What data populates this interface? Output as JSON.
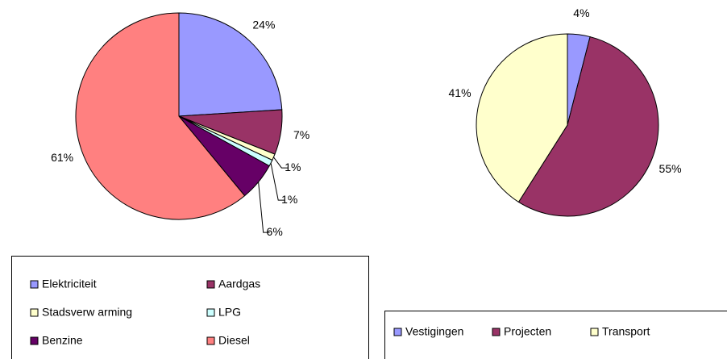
{
  "chart_data": [
    {
      "type": "pie",
      "legend": "bottom",
      "categories": [
        "Elektriciteit",
        "Aardgas",
        "Stadsverw arming",
        "LPG",
        "Benzine",
        "Diesel"
      ],
      "values": [
        24,
        7,
        1,
        1,
        6,
        61
      ],
      "value_labels": [
        "24%",
        "7%",
        "1%",
        "1%",
        "6%",
        "61%"
      ],
      "colors": [
        "#9999ff",
        "#993366",
        "#ffffcc",
        "#ccffff",
        "#660066",
        "#ff8080"
      ]
    },
    {
      "type": "pie",
      "legend": "bottom",
      "categories": [
        "Vestigingen",
        "Projecten",
        "Transport"
      ],
      "values": [
        4,
        55,
        41
      ],
      "value_labels": [
        "4%",
        "55%",
        "41%"
      ],
      "colors": [
        "#9999ff",
        "#993366",
        "#ffffcc"
      ]
    }
  ]
}
